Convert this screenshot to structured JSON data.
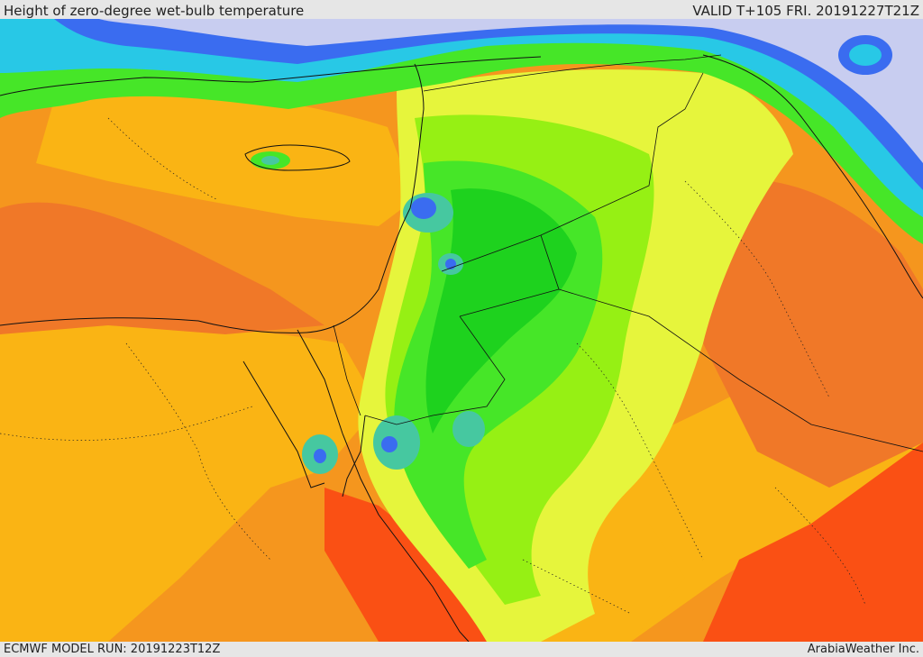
{
  "header": {
    "title": "Height of zero-degree wet-bulb temperature",
    "valid": "VALID T+105 FRI. 20191227T21Z"
  },
  "footer": {
    "model_run": "ECMWF MODEL RUN: 20191223T12Z",
    "brand": "ArabiaWeather Inc."
  },
  "palette": {
    "lowest": "#c8cdf0",
    "blue": "#3a6cf0",
    "cyan": "#28c8e6",
    "teal": "#46c8a0",
    "green_dark": "#1ed21e",
    "green": "#46e628",
    "lime": "#96f014",
    "yellow": "#e6f53c",
    "orange_light": "#fab414",
    "orange": "#f5961e",
    "orange_dark": "#f07828",
    "red": "#fa5014"
  }
}
